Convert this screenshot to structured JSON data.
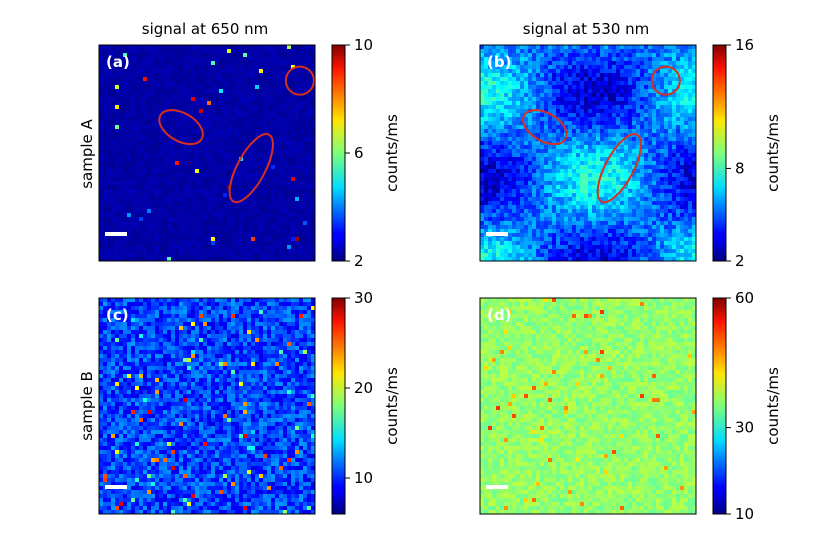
{
  "chart_data": {
    "type": "heatmap",
    "columns": [
      "signal at 650 nm",
      "signal at 530 nm"
    ],
    "rows": [
      "sample A",
      "sample B"
    ],
    "panels": [
      {
        "id": "a",
        "label": "(a)",
        "row": 0,
        "col": 0,
        "colormap": "jet",
        "colorbar": {
          "label": "counts/ms",
          "range": [
            2,
            10
          ],
          "ticks": [
            "2",
            "6",
            "10"
          ]
        },
        "background": 2.3,
        "noise": 0.15,
        "highlights": [
          {
            "cx": 0.38,
            "cy": 0.38,
            "rx": 0.11,
            "ry": 0.065,
            "angle": 30,
            "color": "#d7301f"
          },
          {
            "cx": 0.705,
            "cy": 0.57,
            "rx": 0.175,
            "ry": 0.065,
            "angle": -62,
            "color": "#d7301f"
          },
          {
            "cx": 0.93,
            "cy": 0.165,
            "rx": 0.065,
            "ry": 0.065,
            "angle": 0,
            "color": "#d7301f"
          }
        ],
        "scalebar": true
      },
      {
        "id": "b",
        "label": "(b)",
        "row": 0,
        "col": 1,
        "colormap": "jet",
        "colorbar": {
          "label": "counts/ms",
          "range": [
            2,
            16
          ],
          "ticks": [
            "2",
            "8",
            "16"
          ]
        },
        "background": 5.3,
        "noise": 1.1,
        "highlights": [
          {
            "cx": 0.3,
            "cy": 0.38,
            "rx": 0.11,
            "ry": 0.065,
            "angle": 30,
            "color": "#d7301f"
          },
          {
            "cx": 0.645,
            "cy": 0.57,
            "rx": 0.175,
            "ry": 0.065,
            "angle": -62,
            "color": "#d7301f"
          },
          {
            "cx": 0.86,
            "cy": 0.165,
            "rx": 0.065,
            "ry": 0.065,
            "angle": 0,
            "color": "#d7301f"
          }
        ],
        "scalebar": true
      },
      {
        "id": "c",
        "label": "(c)",
        "row": 1,
        "col": 0,
        "colormap": "jet",
        "colorbar": {
          "label": "counts/ms",
          "range": [
            6,
            30
          ],
          "ticks": [
            "10",
            "20",
            "30"
          ],
          "tick_values": [
            10,
            20,
            30
          ]
        },
        "background": 10.5,
        "noise": 2.2,
        "highlights": [],
        "scalebar": true
      },
      {
        "id": "d",
        "label": "(d)",
        "row": 1,
        "col": 1,
        "colormap": "jet",
        "colorbar": {
          "label": "counts/ms",
          "range": [
            10,
            60
          ],
          "ticks": [
            "10",
            "30",
            "60"
          ],
          "tick_values": [
            10,
            30,
            60
          ]
        },
        "background": 36,
        "noise": 2.2,
        "highlights": [],
        "scalebar": true
      }
    ]
  }
}
